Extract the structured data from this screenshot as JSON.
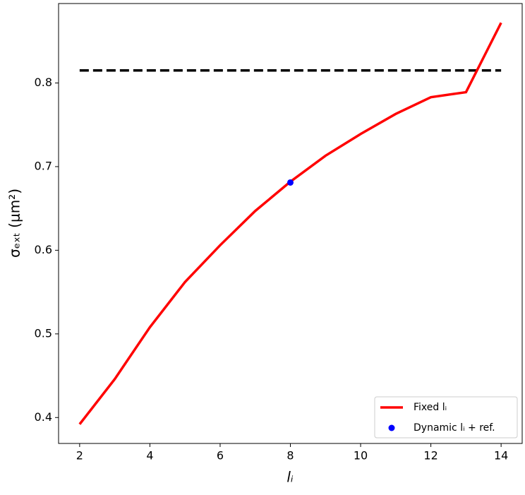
{
  "chart_data": {
    "type": "line",
    "x_label": "lᵢ",
    "y_label": "σₑₓₜ  (μm²)",
    "xlim": [
      1.4,
      14.6
    ],
    "ylim": [
      0.369,
      0.895
    ],
    "xticks": [
      2,
      4,
      6,
      8,
      10,
      12,
      14
    ],
    "yticks": [
      0.4,
      0.5,
      0.6,
      0.7,
      0.8
    ],
    "legend": "lower right",
    "series": [
      {
        "name": "Fixed lᵢ",
        "color": "#ff0000",
        "kind": "line",
        "x": [
          2,
          3,
          4,
          5,
          6,
          7,
          8,
          9,
          10,
          11,
          12,
          13,
          14
        ],
        "values": [
          0.392,
          0.446,
          0.508,
          0.562,
          0.606,
          0.647,
          0.682,
          0.713,
          0.739,
          0.763,
          0.783,
          0.789,
          0.872
        ]
      },
      {
        "name": "Dynamic lᵢ + ref.",
        "color": "#0000ff",
        "kind": "point",
        "x": [
          8
        ],
        "values": [
          0.681
        ]
      }
    ],
    "reference_line": {
      "x": [
        2,
        14
      ],
      "value": 0.815,
      "color": "#000000",
      "style": "dashed"
    }
  }
}
